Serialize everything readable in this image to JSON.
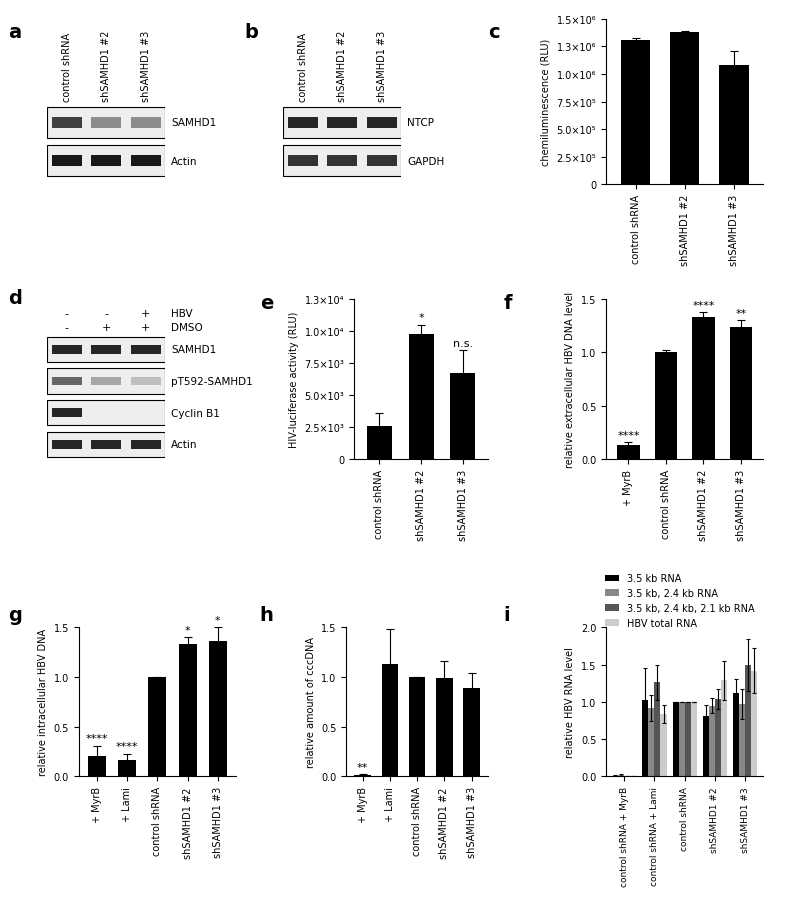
{
  "chart_data": [
    {
      "type": "bar",
      "title": "c",
      "y_label": "chemiluminescence (RLU)",
      "categories": [
        "control shRNA",
        "shSAMHD1 #2",
        "shSAMHD1 #3"
      ],
      "values": [
        1310000,
        1380000,
        1080000
      ],
      "errors": [
        20000,
        10000,
        130000
      ],
      "color": "#000000",
      "ylim": [
        0,
        1500000
      ],
      "yticks": [
        {
          "value": 0,
          "label": "0"
        },
        {
          "value": 250000,
          "label": "2.5×10⁵"
        },
        {
          "value": 500000,
          "label": "5.0×10⁵"
        },
        {
          "value": 750000,
          "label": "7.5×10⁵"
        },
        {
          "value": 1000000,
          "label": "1.0×10⁶"
        },
        {
          "value": 1250000,
          "label": "1.3×10⁶"
        },
        {
          "value": 1500000,
          "label": "1.5×10⁶"
        }
      ],
      "grid": false
    },
    {
      "type": "bar",
      "title": "e",
      "y_label": "HIV-luciferase activity (RLU)",
      "categories": [
        "control shRNA",
        "shSAMHD1 #2",
        "shSAMHD1 #3"
      ],
      "values": [
        2600,
        9800,
        6700
      ],
      "errors": [
        1000,
        700,
        1800
      ],
      "annotations": [
        null,
        "*",
        "n.s."
      ],
      "color": "#000000",
      "ylim": [
        0,
        12500
      ],
      "yticks": [
        {
          "value": 0,
          "label": "0"
        },
        {
          "value": 2500,
          "label": "2.5×10³"
        },
        {
          "value": 5000,
          "label": "5.0×10³"
        },
        {
          "value": 7500,
          "label": "7.5×10³"
        },
        {
          "value": 10000,
          "label": "1.0×10⁴"
        },
        {
          "value": 12500,
          "label": "1.3×10⁴"
        }
      ],
      "grid": false
    },
    {
      "type": "bar",
      "title": "f",
      "y_label": "relative extracellular HBV DNA level",
      "categories": [
        "+ MyrB",
        "control shRNA",
        "shSAMHD1 #2",
        "shSAMHD1 #3"
      ],
      "values": [
        0.13,
        1.0,
        1.33,
        1.24
      ],
      "errors": [
        0.03,
        0.02,
        0.05,
        0.06
      ],
      "annotations": [
        "****",
        null,
        "****",
        "**"
      ],
      "color": "#000000",
      "ylim": [
        0,
        1.5
      ],
      "yticks": [
        {
          "value": 0,
          "label": "0.0"
        },
        {
          "value": 0.5,
          "label": "0.5"
        },
        {
          "value": 1,
          "label": "1.0"
        },
        {
          "value": 1.5,
          "label": "1.5"
        }
      ],
      "grid": false
    },
    {
      "type": "bar",
      "title": "g",
      "y_label": "relative intracellular HBV DNA",
      "categories": [
        "+ MyrB",
        "+ Lami",
        "control shRNA",
        "shSAMHD1 #2",
        "shSAMHD1 #3"
      ],
      "values": [
        0.21,
        0.17,
        1.0,
        1.33,
        1.36
      ],
      "errors": [
        0.1,
        0.06,
        0.0,
        0.07,
        0.14
      ],
      "annotations": [
        "****",
        "****",
        null,
        "*",
        "*"
      ],
      "color": "#000000",
      "ylim": [
        0,
        1.5
      ],
      "yticks": [
        {
          "value": 0,
          "label": "0.0"
        },
        {
          "value": 0.5,
          "label": "0.5"
        },
        {
          "value": 1,
          "label": "1.0"
        },
        {
          "value": 1.5,
          "label": "1.5"
        }
      ],
      "grid": false
    },
    {
      "type": "bar",
      "title": "h",
      "y_label": "relative amount of cccDNA",
      "categories": [
        "+ MyrB",
        "+ Lami",
        "control shRNA",
        "shSAMHD1 #2",
        "shSAMHD1 #3"
      ],
      "values": [
        0.01,
        1.13,
        1.0,
        0.99,
        0.89
      ],
      "errors": [
        0.01,
        0.35,
        0.0,
        0.17,
        0.15
      ],
      "annotations": [
        "**",
        null,
        null,
        null,
        null
      ],
      "color": "#000000",
      "ylim": [
        0,
        1.5
      ],
      "yticks": [
        {
          "value": 0,
          "label": "0.0"
        },
        {
          "value": 0.5,
          "label": "0.5"
        },
        {
          "value": 1,
          "label": "1.0"
        },
        {
          "value": 1.5,
          "label": "1.5"
        }
      ],
      "grid": false
    },
    {
      "type": "bar",
      "title": "i",
      "y_label": "relative HBV RNA level",
      "categories": [
        "control shRNA + MyrB",
        "control shRNA + Lami",
        "control shRNA",
        "shSAMHD1 #2",
        "shSAMHD1 #3"
      ],
      "series": [
        {
          "name": "3.5 kb RNA",
          "color": "#000000",
          "values": [
            0.01,
            1.02,
            1.0,
            0.81,
            1.12
          ],
          "errors": [
            0.005,
            0.44,
            0.0,
            0.15,
            0.18
          ]
        },
        {
          "name": "3.5 kb, 2.4 kb RNA",
          "color": "#888888",
          "values": [
            0.02,
            0.92,
            1.0,
            0.95,
            0.97
          ],
          "errors": [
            0.01,
            0.17,
            0.0,
            0.1,
            0.2
          ]
        },
        {
          "name": "3.5 kb, 2.4 kb, 2.1 kb RNA",
          "color": "#555555",
          "values": [
            0.005,
            1.26,
            1.0,
            1.04,
            1.49
          ],
          "errors": [
            0.003,
            0.23,
            0.0,
            0.13,
            0.35
          ]
        },
        {
          "name": "HBV total RNA",
          "color": "#cccccc",
          "values": [
            0.0,
            0.84,
            1.0,
            1.29,
            1.42
          ],
          "errors": [
            0.0,
            0.12,
            0.0,
            0.26,
            0.3
          ]
        }
      ],
      "ylim": [
        0,
        2.0
      ],
      "yticks": [
        {
          "value": 0,
          "label": "0.0"
        },
        {
          "value": 0.5,
          "label": "0.5"
        },
        {
          "value": 1,
          "label": "1.0"
        },
        {
          "value": 1.5,
          "label": "1.5"
        },
        {
          "value": 2,
          "label": "2.0"
        }
      ],
      "legend": "upper right",
      "grid": false
    }
  ],
  "blots": [
    {
      "title": "a",
      "lanes": [
        "control shRNA",
        "shSAMHD1 #2",
        "shSAMHD1 #3"
      ],
      "rows": [
        {
          "name": "SAMHD1",
          "intensity": [
            0.75,
            0.45,
            0.45
          ]
        },
        {
          "name": "Actin",
          "intensity": [
            0.9,
            0.9,
            0.9
          ]
        }
      ]
    },
    {
      "title": "b",
      "lanes": [
        "control shRNA",
        "shSAMHD1 #2",
        "shSAMHD1 #3"
      ],
      "rows": [
        {
          "name": "NTCP",
          "intensity": [
            0.85,
            0.85,
            0.85
          ]
        },
        {
          "name": "GAPDH",
          "intensity": [
            0.8,
            0.8,
            0.8
          ]
        }
      ]
    },
    {
      "title": "d",
      "conditions": [
        {
          "name": "HBV",
          "values": [
            "-",
            "-",
            "+"
          ]
        },
        {
          "name": "DMSO",
          "values": [
            "-",
            "+",
            "+"
          ]
        }
      ],
      "rows": [
        {
          "name": "SAMHD1",
          "intensity": [
            0.85,
            0.85,
            0.85
          ]
        },
        {
          "name": "pT592-SAMHD1",
          "intensity": [
            0.6,
            0.35,
            0.25
          ]
        },
        {
          "name": "Cyclin B1",
          "intensity": [
            0.85,
            0.0,
            0.0
          ]
        },
        {
          "name": "Actin",
          "intensity": [
            0.85,
            0.85,
            0.85
          ]
        }
      ]
    }
  ]
}
